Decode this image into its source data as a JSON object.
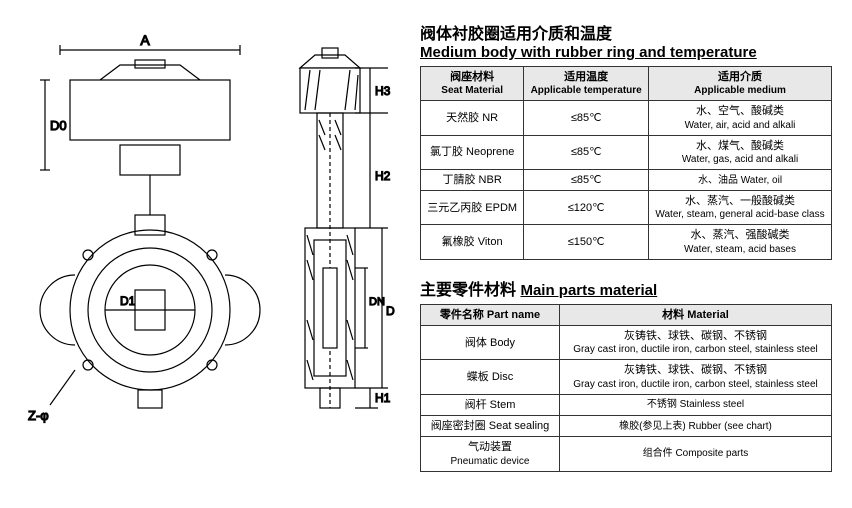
{
  "section1": {
    "title_cn": "阀体衬胶圈适用介质和温度",
    "title_en": "Medium body with rubber ring and temperature",
    "headers": {
      "col1_cn": "阀座材料",
      "col1_en": "Seat Material",
      "col2_cn": "适用温度",
      "col2_en": "Applicable temperature",
      "col3_cn": "适用介质",
      "col3_en": "Applicable medium"
    },
    "rows": [
      {
        "m": "天然胶 NR",
        "t": "≤85℃",
        "a_cn": "水、空气、酸碱类",
        "a_en": "Water, air, acid and alkali"
      },
      {
        "m": "氯丁胶 Neoprene",
        "t": "≤85℃",
        "a_cn": "水、煤气、酸碱类",
        "a_en": "Water, gas, acid and alkali"
      },
      {
        "m": "丁腈胶 NBR",
        "t": "≤85℃",
        "a_cn": "",
        "a_en": "水、油品 Water, oil"
      },
      {
        "m": "三元乙丙胶 EPDM",
        "t": "≤120℃",
        "a_cn": "水、蒸汽、一般酸碱类",
        "a_en": "Water, steam, general acid-base class"
      },
      {
        "m": "氟橡胶 Viton",
        "t": "≤150℃",
        "a_cn": "水、蒸汽、强酸碱类",
        "a_en": "Water, steam, acid bases"
      }
    ]
  },
  "section2": {
    "title_cn": "主要零件材料",
    "title_en": "Main parts material",
    "headers": {
      "col1": "零件名称 Part name",
      "col2": "材料 Material"
    },
    "rows": [
      {
        "p": "阀体 Body",
        "m_cn": "灰铸铁、球铁、碳钢、不锈钢",
        "m_en": "Gray cast iron, ductile iron, carbon steel, stainless steel"
      },
      {
        "p": "蝶板 Disc",
        "m_cn": "灰铸铁、球铁、碳钢、不锈钢",
        "m_en": "Gray cast iron, ductile iron, carbon steel, stainless steel"
      },
      {
        "p": "阀杆 Stem",
        "m_cn": "",
        "m_en": "不锈钢 Stainless steel"
      },
      {
        "p": "阀座密封圈 Seat sealing",
        "m_cn": "",
        "m_en": "橡胶(参见上表) Rubber (see chart)"
      },
      {
        "p_cn": "气动装置",
        "p_en": "Pneumatic device",
        "m_cn": "",
        "m_en": "组合件 Composite parts"
      }
    ]
  },
  "diagram": {
    "labels": [
      "A",
      "D0",
      "D1",
      "Z-φ",
      "H3",
      "H2",
      "DN",
      "D",
      "H1"
    ]
  }
}
